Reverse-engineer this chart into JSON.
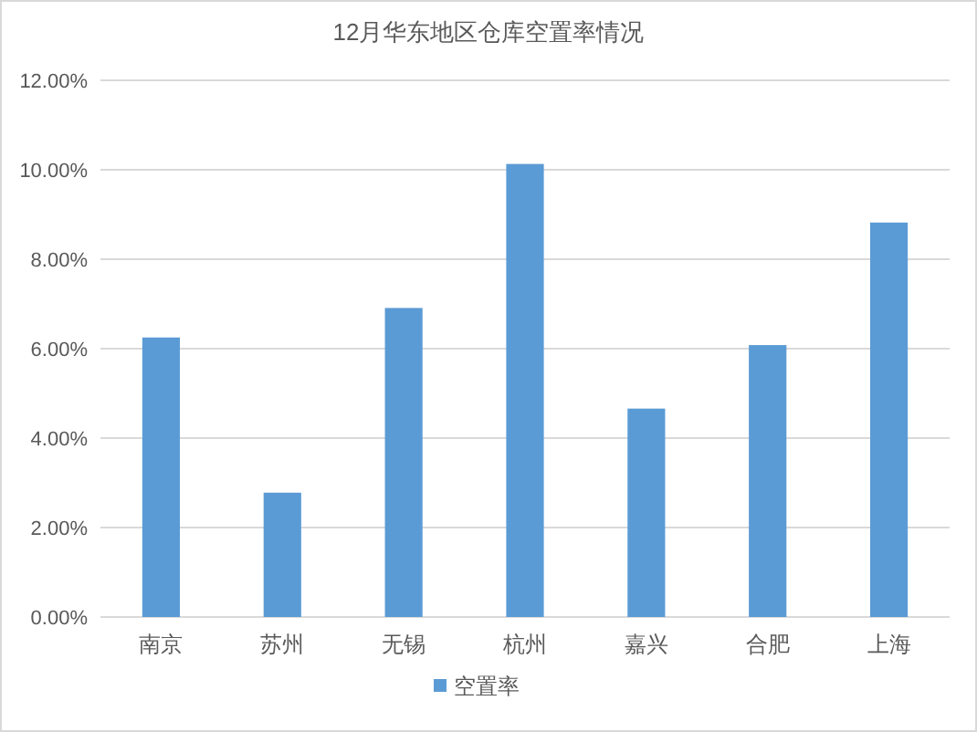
{
  "chart_data": {
    "type": "bar",
    "title": "12月华东地区仓库空置率情况",
    "categories": [
      "南京",
      "苏州",
      "无锡",
      "杭州",
      "嘉兴",
      "合肥",
      "上海"
    ],
    "series": [
      {
        "name": "空置率",
        "color": "#5b9bd5",
        "values": [
          6.25,
          2.78,
          6.91,
          10.13,
          4.66,
          6.08,
          8.82
        ]
      }
    ],
    "ylim": [
      0,
      12
    ],
    "yticks": [
      {
        "value": 0,
        "label": "0.00%"
      },
      {
        "value": 2,
        "label": "2.00%"
      },
      {
        "value": 4,
        "label": "4.00%"
      },
      {
        "value": 6,
        "label": "6.00%"
      },
      {
        "value": 8,
        "label": "8.00%"
      },
      {
        "value": 10,
        "label": "10.00%"
      },
      {
        "value": 12,
        "label": "12.00%"
      }
    ],
    "grid": "y",
    "legend": "bottom"
  }
}
